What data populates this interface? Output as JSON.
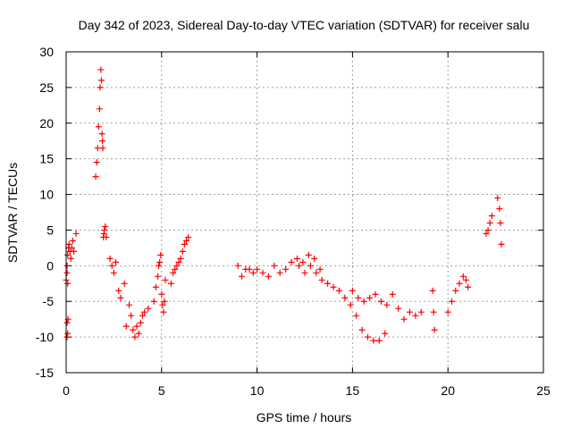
{
  "chart_data": {
    "type": "scatter",
    "title": "Day 342 of 2023, Sidereal Day-to-day VTEC variation (SDTVAR) for receiver salu",
    "xlabel": "GPS time / hours",
    "ylabel": "SDTVAR / TECUs",
    "xlim": [
      0,
      25
    ],
    "ylim": [
      -15,
      30
    ],
    "xticks": [
      "0",
      "5",
      "10",
      "15",
      "20",
      "25"
    ],
    "yticks": [
      "-15",
      "-10",
      "-5",
      "0",
      "5",
      "10",
      "15",
      "20",
      "25",
      "30"
    ],
    "grid": true,
    "marker": "+",
    "color": "#ff0000",
    "series": [
      {
        "name": "SDTVAR",
        "x": [
          0.0,
          0.05,
          0.08,
          0.12,
          0.15,
          0.2,
          0.25,
          0.3,
          0.35,
          0.4,
          0.05,
          0.08,
          0.05,
          0.1,
          0.05,
          0.08,
          0.52,
          1.55,
          1.6,
          1.65,
          1.7,
          1.75,
          1.78,
          1.82,
          1.85,
          1.88,
          1.9,
          1.92,
          1.95,
          1.98,
          2.0,
          2.05,
          2.1,
          2.3,
          2.4,
          2.5,
          2.6,
          2.75,
          2.85,
          3.05,
          3.15,
          3.3,
          3.4,
          3.5,
          3.6,
          3.7,
          3.8,
          3.9,
          4.0,
          4.1,
          4.3,
          4.6,
          4.7,
          4.8,
          4.85,
          4.9,
          4.95,
          5.0,
          5.05,
          5.1,
          5.15,
          5.2,
          5.5,
          5.6,
          5.7,
          5.8,
          5.9,
          6.0,
          6.1,
          6.2,
          6.3,
          6.4,
          9.0,
          9.2,
          9.4,
          9.6,
          9.8,
          10.0,
          10.3,
          10.6,
          10.9,
          11.2,
          11.5,
          11.8,
          12.1,
          12.4,
          12.7,
          13.0,
          13.3,
          12.2,
          12.5,
          12.8,
          13.1,
          13.4,
          13.7,
          14.0,
          14.3,
          14.6,
          14.9,
          15.2,
          15.5,
          15.8,
          16.1,
          16.4,
          16.7,
          15.0,
          15.3,
          15.6,
          15.9,
          16.2,
          16.5,
          16.8,
          17.1,
          17.4,
          17.7,
          18.0,
          18.3,
          18.6,
          19.2,
          19.25,
          19.3,
          20.0,
          20.2,
          20.4,
          20.6,
          20.8,
          20.95,
          21.05,
          22.0,
          22.1,
          22.2,
          22.3,
          22.6,
          22.7,
          22.75,
          22.8
        ],
        "y": [
          -2.0,
          0.0,
          1.5,
          2.5,
          3.0,
          2.0,
          1.0,
          2.5,
          3.5,
          2.0,
          -8.0,
          -9.5,
          -10.0,
          -7.5,
          -1.0,
          -2.5,
          4.5,
          12.5,
          14.5,
          16.5,
          19.5,
          22.0,
          25.0,
          27.5,
          26.0,
          18.5,
          17.5,
          16.5,
          4.0,
          4.5,
          5.0,
          5.5,
          4.0,
          1.0,
          0.0,
          -1.0,
          0.5,
          -3.5,
          -4.5,
          -2.5,
          -8.5,
          -5.5,
          -7.0,
          -9.0,
          -10.0,
          -8.5,
          -9.5,
          -8.0,
          -7.0,
          -6.5,
          -6.0,
          -5.0,
          -3.0,
          -1.5,
          0.0,
          0.5,
          1.5,
          -4.0,
          -5.5,
          -6.5,
          -5.0,
          -2.0,
          -2.5,
          -1.0,
          -0.5,
          0.0,
          0.5,
          1.0,
          2.0,
          3.0,
          3.5,
          4.0,
          0.0,
          -1.5,
          -0.5,
          -0.5,
          -1.0,
          -0.5,
          -1.0,
          -1.5,
          0.0,
          -1.0,
          -0.5,
          0.5,
          1.0,
          0.5,
          1.5,
          1.0,
          -0.5,
          0.0,
          -1.0,
          0.0,
          -1.0,
          -2.0,
          -2.5,
          -3.0,
          -3.5,
          -4.5,
          -5.5,
          -7.0,
          -9.0,
          -10.0,
          -10.5,
          -10.5,
          -9.5,
          -3.5,
          -4.5,
          -5.0,
          -4.5,
          -4.0,
          -5.0,
          -5.5,
          -4.0,
          -6.0,
          -7.5,
          -6.5,
          -7.0,
          -6.5,
          -3.5,
          -6.5,
          -9.0,
          -6.5,
          -5.0,
          -3.5,
          -2.5,
          -1.5,
          -2.0,
          -3.0,
          4.5,
          5.0,
          6.0,
          7.0,
          9.5,
          8.0,
          6.0,
          3.0
        ]
      }
    ]
  }
}
